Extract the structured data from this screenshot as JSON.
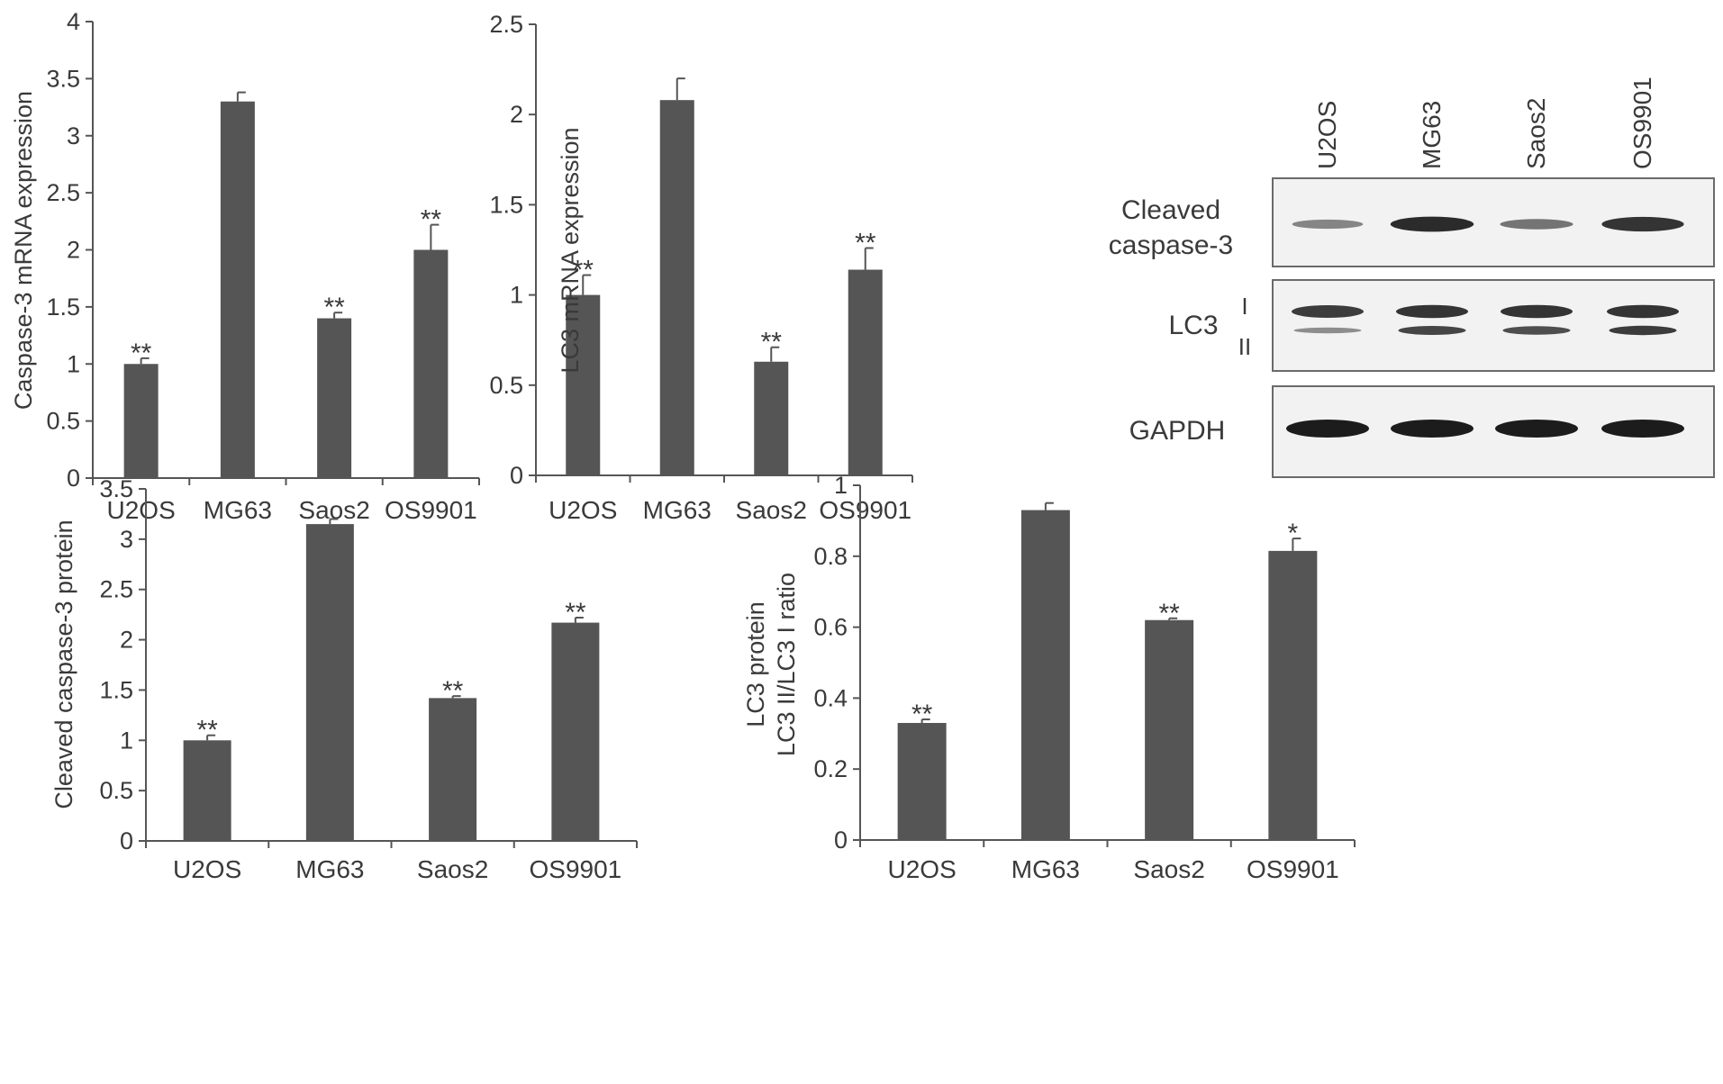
{
  "colors": {
    "bar": "#555555",
    "axis": "#555555",
    "text": "#3a3a3a",
    "annotation": "#7a7a7a",
    "blot_bg": "#f2f2f2",
    "band": "#1c1c1c"
  },
  "chart_data": [
    {
      "type": "bar",
      "categories": [
        "U2OS",
        "MG63",
        "Saos2",
        "OS9901"
      ],
      "values": [
        1.0,
        3.3,
        1.4,
        2.0
      ],
      "errors": [
        0.05,
        0.08,
        0.05,
        0.22
      ],
      "annotations": [
        "**",
        "",
        "**",
        "**"
      ],
      "ylabel": "Caspase-3 mRNA expression",
      "ylim": [
        0,
        4
      ],
      "yticks": [
        "0",
        "0.5",
        "1",
        "1.5",
        "2",
        "2.5",
        "3",
        "3.5",
        "4"
      ]
    },
    {
      "type": "bar",
      "categories": [
        "U2OS",
        "MG63",
        "Saos2",
        "OS9901"
      ],
      "values": [
        1.0,
        2.08,
        0.63,
        1.14
      ],
      "errors": [
        0.11,
        0.12,
        0.08,
        0.12
      ],
      "annotations": [
        "**",
        "",
        "**",
        "**"
      ],
      "ylabel": "LC3 mRNA expression",
      "ylim": [
        0,
        2.5
      ],
      "yticks": [
        "0",
        "0.5",
        "1",
        "1.5",
        "2",
        "2.5"
      ]
    },
    {
      "type": "bar",
      "categories": [
        "U2OS",
        "MG63",
        "Saos2",
        "OS9901"
      ],
      "values": [
        1.0,
        3.15,
        1.42,
        2.17
      ],
      "errors": [
        0.05,
        0.05,
        0.02,
        0.05
      ],
      "annotations": [
        "**",
        "",
        "**",
        "**"
      ],
      "ylabel": "Cleaved caspase-3 protein",
      "ylim": [
        0,
        3.5
      ],
      "yticks": [
        "0",
        "0.5",
        "1",
        "1.5",
        "2",
        "2.5",
        "3",
        "3.5"
      ]
    },
    {
      "type": "bar",
      "categories": [
        "U2OS",
        "MG63",
        "Saos2",
        "OS9901"
      ],
      "values": [
        0.33,
        0.93,
        0.62,
        0.815
      ],
      "errors": [
        0.01,
        0.02,
        0.005,
        0.035
      ],
      "annotations": [
        "**",
        "",
        "**",
        "*"
      ],
      "ylabel": [
        "LC3 protein",
        "LC3 II/LC3 I ratio"
      ],
      "ylim": [
        0,
        1
      ],
      "yticks": [
        "0",
        "0.2",
        "0.4",
        "0.6",
        "0.8",
        "1"
      ]
    }
  ],
  "blot": {
    "lanes": [
      "U2OS",
      "MG63",
      "Saos2",
      "OS9901"
    ],
    "panels": [
      {
        "label": [
          "Cleaved",
          "caspase-3"
        ],
        "band_intensity": [
          0.35,
          0.9,
          0.45,
          0.85
        ]
      },
      {
        "label": [
          "LC3"
        ],
        "sublabels": [
          "I",
          "II"
        ],
        "band_I": [
          0.8,
          0.85,
          0.85,
          0.85
        ],
        "band_II": [
          0.3,
          0.75,
          0.7,
          0.8
        ]
      },
      {
        "label": [
          "GAPDH"
        ],
        "band_intensity": [
          1.0,
          1.0,
          1.0,
          1.0
        ]
      }
    ]
  }
}
